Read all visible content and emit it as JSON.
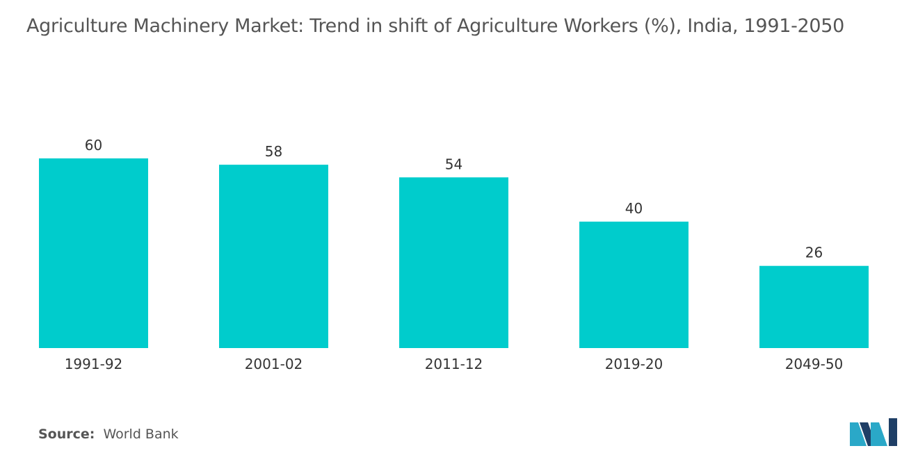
{
  "title": "Agriculture Machinery Market: Trend in shift of Agriculture Workers (%), India, 1991-2050",
  "source": {
    "label": "Source:",
    "value": "World Bank"
  },
  "logo": {
    "icon": "mordor-intelligence-logo-icon",
    "colors": [
      "#1f3f66",
      "#2aa8c8"
    ]
  },
  "colors": {
    "bar": "#00cccc",
    "text": "#333333",
    "title": "#555555"
  },
  "chart_data": {
    "type": "bar",
    "categories": [
      "1991-92",
      "2001-02",
      "2011-12",
      "2019-20",
      "2049-50"
    ],
    "values": [
      60,
      58,
      54,
      40,
      26
    ],
    "data_labels": [
      "60",
      "58",
      "54",
      "40",
      "26"
    ],
    "title": "Agriculture Machinery Market: Trend in shift of Agriculture Workers (%), India, 1991-2050",
    "xlabel": "",
    "ylabel": "",
    "ylim": [
      0,
      60
    ],
    "grid": false,
    "legend": "none"
  }
}
